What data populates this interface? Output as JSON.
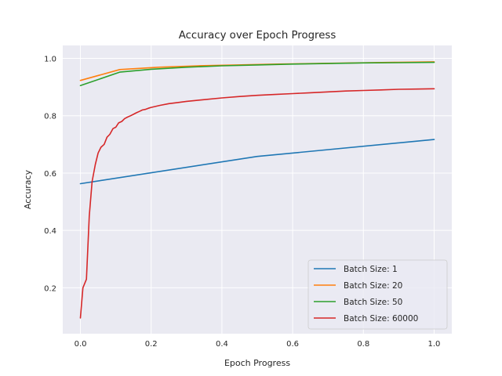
{
  "chart_data": {
    "type": "line",
    "title": "Accuracy over Epoch Progress",
    "xlabel": "Epoch Progress",
    "ylabel": "Accuracy",
    "xlim": [
      -0.05,
      1.05
    ],
    "ylim": [
      0.04,
      1.045
    ],
    "xticks": [
      0.0,
      0.2,
      0.4,
      0.6,
      0.8,
      1.0
    ],
    "xtick_labels": [
      "0.0",
      "0.2",
      "0.4",
      "0.6",
      "0.8",
      "1.0"
    ],
    "yticks": [
      0.2,
      0.4,
      0.6,
      0.8,
      1.0
    ],
    "ytick_labels": [
      "0.2",
      "0.4",
      "0.6",
      "0.8",
      "1.0"
    ],
    "grid": true,
    "legend_position": "lower-right",
    "series": [
      {
        "name": "Batch Size: 1",
        "color": "#1f77b4",
        "x": [
          0.0,
          0.5,
          1.0
        ],
        "y": [
          0.563,
          0.658,
          0.717
        ]
      },
      {
        "name": "Batch Size: 20",
        "color": "#ff7f0e",
        "x": [
          0.0,
          0.111,
          0.222,
          0.333,
          0.444,
          0.556,
          0.667,
          0.778,
          0.889,
          1.0
        ],
        "y": [
          0.923,
          0.961,
          0.969,
          0.974,
          0.977,
          0.98,
          0.982,
          0.984,
          0.986,
          0.988
        ]
      },
      {
        "name": "Batch Size: 50",
        "color": "#2ca02c",
        "x": [
          0.0,
          0.111,
          0.2,
          0.3,
          0.4,
          0.5,
          0.6,
          0.7,
          0.8,
          0.9,
          1.0
        ],
        "y": [
          0.905,
          0.952,
          0.962,
          0.969,
          0.974,
          0.977,
          0.98,
          0.982,
          0.984,
          0.985,
          0.986
        ]
      },
      {
        "name": "Batch Size: 60000",
        "color": "#d62728",
        "x": [
          0.0,
          0.007,
          0.017,
          0.025,
          0.033,
          0.042,
          0.05,
          0.058,
          0.067,
          0.075,
          0.083,
          0.092,
          0.1,
          0.108,
          0.117,
          0.125,
          0.133,
          0.142,
          0.15,
          0.158,
          0.167,
          0.175,
          0.183,
          0.192,
          0.2,
          0.225,
          0.25,
          0.275,
          0.3,
          0.325,
          0.35,
          0.4,
          0.45,
          0.5,
          0.55,
          0.6,
          0.65,
          0.7,
          0.75,
          0.8,
          0.85,
          0.9,
          0.95,
          1.0
        ],
        "y": [
          0.095,
          0.2,
          0.23,
          0.45,
          0.57,
          0.63,
          0.67,
          0.69,
          0.7,
          0.725,
          0.735,
          0.755,
          0.76,
          0.775,
          0.78,
          0.79,
          0.795,
          0.8,
          0.805,
          0.81,
          0.815,
          0.82,
          0.822,
          0.826,
          0.829,
          0.836,
          0.842,
          0.846,
          0.85,
          0.853,
          0.856,
          0.862,
          0.867,
          0.871,
          0.874,
          0.877,
          0.88,
          0.883,
          0.886,
          0.888,
          0.89,
          0.892,
          0.893,
          0.894
        ]
      }
    ]
  }
}
